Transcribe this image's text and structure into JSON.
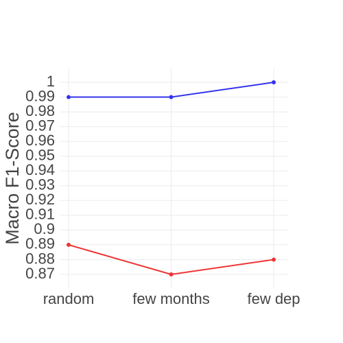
{
  "chart_data": {
    "type": "line",
    "y_label": "Macro F1-Score",
    "categories": [
      "random",
      "few months",
      "few dep"
    ],
    "series": [
      {
        "color": "#3333ee",
        "values": [
          0.99,
          0.99,
          1
        ]
      },
      {
        "color": "#ee3333",
        "values": [
          0.89,
          0.87,
          0.88
        ]
      }
    ],
    "ylim": [
      0.8607,
      1.0093
    ],
    "yticks": [
      0.87,
      0.88,
      0.89,
      0.9,
      0.91,
      0.92,
      0.93,
      0.94,
      0.95,
      0.96,
      0.97,
      0.98,
      0.99,
      1
    ],
    "grid": true
  }
}
